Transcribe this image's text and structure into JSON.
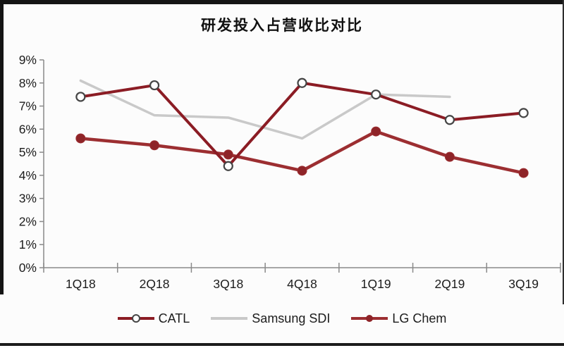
{
  "chart_data": {
    "type": "line",
    "title": "研发投入占营收比对比",
    "categories": [
      "1Q18",
      "2Q18",
      "3Q18",
      "4Q18",
      "1Q19",
      "2Q19",
      "3Q19"
    ],
    "series": [
      {
        "name": "CATL",
        "color": "#8b1c24",
        "marker": "open-circle",
        "marker_ring": "#454545",
        "line_width": 4,
        "values": [
          7.4,
          7.9,
          4.4,
          8.0,
          7.5,
          6.4,
          6.7
        ]
      },
      {
        "name": "Samsung SDI",
        "color": "#c9c9c9",
        "marker": "none",
        "marker_ring": "#c9c9c9",
        "line_width": 3.5,
        "values": [
          8.1,
          6.6,
          6.5,
          5.6,
          7.5,
          7.4,
          null
        ]
      },
      {
        "name": "LG Chem",
        "color": "#9c2e31",
        "marker": "filled-circle",
        "marker_ring": "#8e2428",
        "line_width": 4.5,
        "values": [
          5.6,
          5.3,
          4.9,
          4.2,
          5.9,
          4.8,
          4.1
        ]
      }
    ],
    "ylim": [
      0,
      9
    ],
    "ytick_labels": [
      "0%",
      "1%",
      "2%",
      "3%",
      "4%",
      "5%",
      "6%",
      "7%",
      "8%",
      "9%"
    ],
    "grid": false,
    "legend_position": "bottom",
    "axis_color": "#8a8a8a",
    "text_color": "#1c1c1c"
  }
}
